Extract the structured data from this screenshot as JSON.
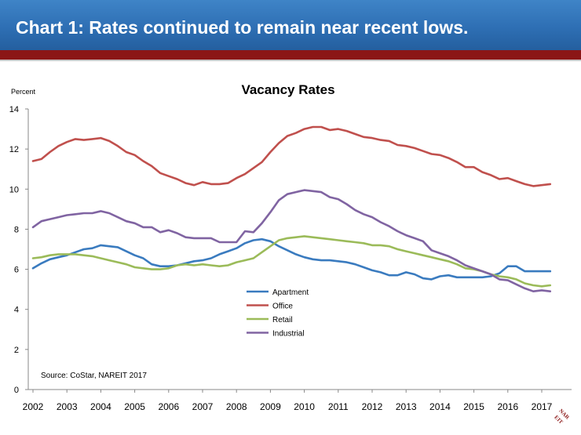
{
  "header": {
    "title": "Chart 1: Rates continued to remain near recent lows."
  },
  "colors": {
    "header_blue": "#2e6fb4",
    "header_band": "#8b1616"
  },
  "logo": {
    "text": "NAREIT"
  },
  "chart_data": {
    "type": "line",
    "title": "Vacancy Rates",
    "ylabel": "Percent",
    "xlabel": "",
    "source": "Source: CoStar, NAREIT 2017",
    "ylim": [
      0,
      14
    ],
    "yticks": [
      0,
      2,
      4,
      6,
      8,
      10,
      12,
      14
    ],
    "xlim": [
      2002,
      2017.5
    ],
    "xticks": [
      "2002",
      "2003",
      "2004",
      "2005",
      "2006",
      "2007",
      "2008",
      "2009",
      "2010",
      "2011",
      "2012",
      "2013",
      "2014",
      "2015",
      "2016",
      "2017"
    ],
    "grid": false,
    "legend": "center",
    "x": [
      2002.0,
      2002.25,
      2002.5,
      2002.75,
      2003.0,
      2003.25,
      2003.5,
      2003.75,
      2004.0,
      2004.25,
      2004.5,
      2004.75,
      2005.0,
      2005.25,
      2005.5,
      2005.75,
      2006.0,
      2006.25,
      2006.5,
      2006.75,
      2007.0,
      2007.25,
      2007.5,
      2007.75,
      2008.0,
      2008.25,
      2008.5,
      2008.75,
      2009.0,
      2009.25,
      2009.5,
      2009.75,
      2010.0,
      2010.25,
      2010.5,
      2010.75,
      2011.0,
      2011.25,
      2011.5,
      2011.75,
      2012.0,
      2012.25,
      2012.5,
      2012.75,
      2013.0,
      2013.25,
      2013.5,
      2013.75,
      2014.0,
      2014.25,
      2014.5,
      2014.75,
      2015.0,
      2015.25,
      2015.5,
      2015.75,
      2016.0,
      2016.25,
      2016.5,
      2016.75,
      2017.0,
      2017.25
    ],
    "series": [
      {
        "name": "Apartment",
        "color": "#3a7bbf",
        "values": [
          6.05,
          6.3,
          6.5,
          6.6,
          6.7,
          6.85,
          7.0,
          7.05,
          7.2,
          7.15,
          7.1,
          6.9,
          6.7,
          6.55,
          6.25,
          6.15,
          6.15,
          6.2,
          6.3,
          6.4,
          6.45,
          6.55,
          6.75,
          6.9,
          7.05,
          7.3,
          7.45,
          7.5,
          7.4,
          7.15,
          6.95,
          6.75,
          6.6,
          6.5,
          6.45,
          6.45,
          6.4,
          6.35,
          6.25,
          6.1,
          5.95,
          5.85,
          5.7,
          5.7,
          5.85,
          5.75,
          5.55,
          5.5,
          5.65,
          5.7,
          5.6,
          5.6,
          5.6,
          5.6,
          5.65,
          5.8,
          6.15,
          6.15,
          5.9,
          5.9,
          5.9,
          5.9
        ]
      },
      {
        "name": "Office",
        "color": "#c0504d",
        "values": [
          11.4,
          11.5,
          11.85,
          12.15,
          12.35,
          12.5,
          12.45,
          12.5,
          12.55,
          12.4,
          12.15,
          11.85,
          11.7,
          11.4,
          11.15,
          10.8,
          10.65,
          10.5,
          10.3,
          10.2,
          10.35,
          10.25,
          10.25,
          10.3,
          10.55,
          10.75,
          11.05,
          11.35,
          11.85,
          12.3,
          12.65,
          12.8,
          13.0,
          13.1,
          13.1,
          12.95,
          13.0,
          12.9,
          12.75,
          12.6,
          12.55,
          12.45,
          12.4,
          12.2,
          12.15,
          12.05,
          11.9,
          11.75,
          11.7,
          11.55,
          11.35,
          11.1,
          11.1,
          10.85,
          10.7,
          10.5,
          10.55,
          10.4,
          10.25,
          10.15,
          10.2,
          10.25
        ]
      },
      {
        "name": "Retail",
        "color": "#9bbb59",
        "values": [
          6.55,
          6.6,
          6.7,
          6.75,
          6.75,
          6.75,
          6.7,
          6.65,
          6.55,
          6.45,
          6.35,
          6.25,
          6.1,
          6.05,
          6.0,
          6.0,
          6.05,
          6.2,
          6.25,
          6.2,
          6.25,
          6.2,
          6.15,
          6.2,
          6.35,
          6.45,
          6.55,
          6.85,
          7.15,
          7.45,
          7.55,
          7.6,
          7.65,
          7.6,
          7.55,
          7.5,
          7.45,
          7.4,
          7.35,
          7.3,
          7.2,
          7.2,
          7.15,
          7.0,
          6.9,
          6.8,
          6.7,
          6.6,
          6.5,
          6.4,
          6.25,
          6.05,
          6.0,
          5.9,
          5.75,
          5.65,
          5.6,
          5.5,
          5.3,
          5.2,
          5.15,
          5.2
        ]
      },
      {
        "name": "Industrial",
        "color": "#8064a2",
        "values": [
          8.1,
          8.4,
          8.5,
          8.6,
          8.7,
          8.75,
          8.8,
          8.8,
          8.9,
          8.8,
          8.6,
          8.4,
          8.3,
          8.1,
          8.1,
          7.85,
          7.95,
          7.8,
          7.6,
          7.55,
          7.55,
          7.55,
          7.35,
          7.35,
          7.35,
          7.9,
          7.85,
          8.3,
          8.85,
          9.45,
          9.75,
          9.85,
          9.95,
          9.9,
          9.85,
          9.6,
          9.5,
          9.25,
          8.95,
          8.75,
          8.6,
          8.35,
          8.15,
          7.9,
          7.7,
          7.55,
          7.4,
          6.95,
          6.8,
          6.65,
          6.45,
          6.2,
          6.05,
          5.9,
          5.75,
          5.5,
          5.45,
          5.25,
          5.05,
          4.9,
          4.95,
          4.9
        ]
      }
    ]
  }
}
